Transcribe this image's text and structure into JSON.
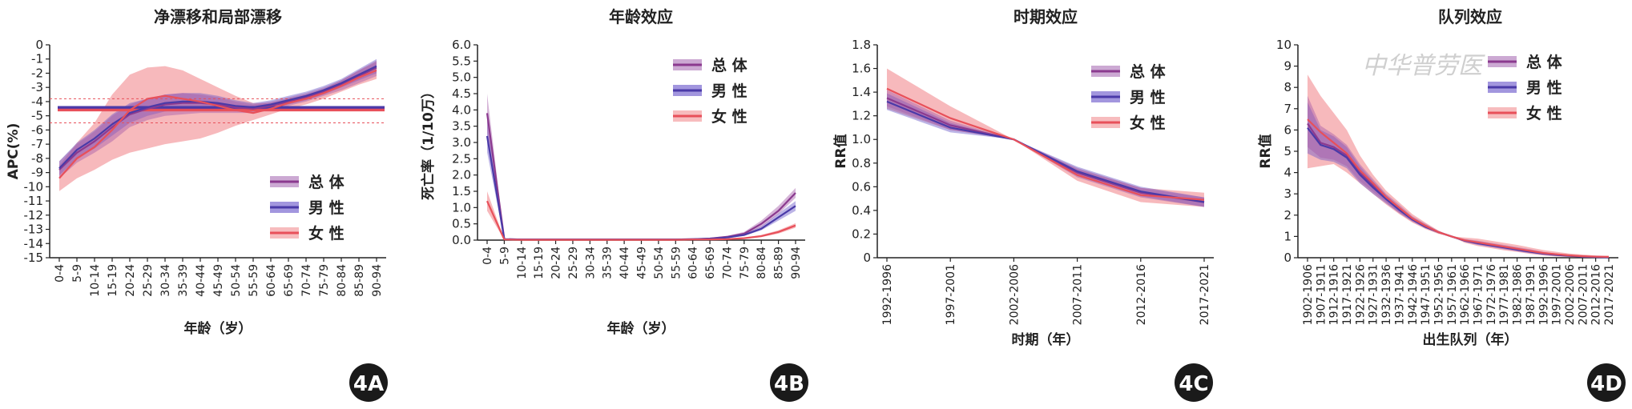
{
  "watermark": "中华普劳医",
  "panels": [
    {
      "id": "4A",
      "title": "净漂移和局部漂移",
      "badge": "4A",
      "chart_data": {
        "type": "line",
        "xlabel": "年龄（岁）",
        "ylabel": "APC(%)",
        "ylim": [
          -15,
          0
        ],
        "yticks": [
          "0",
          "-1",
          "-2",
          "-3",
          "-4",
          "-5",
          "-6",
          "-7",
          "-8",
          "-9",
          "-10",
          "-11",
          "-12",
          "-13",
          "-14",
          "-15"
        ],
        "categories": [
          "0-4",
          "5-9",
          "10-14",
          "15-19",
          "20-24",
          "25-29",
          "30-34",
          "35-39",
          "40-44",
          "45-49",
          "50-54",
          "55-59",
          "60-64",
          "65-69",
          "70-74",
          "75-79",
          "80-84",
          "85-89",
          "90-94"
        ],
        "net_drift": {
          "总体": -4.5,
          "男性": -4.4,
          "女性": -4.6
        },
        "net_drift_ci_female": [
          -5.5,
          -3.8
        ],
        "series": [
          {
            "name": "总体",
            "color": "#8b3a8f",
            "values": [
              -8.8,
              -7.6,
              -6.8,
              -5.8,
              -4.9,
              -4.5,
              -4.2,
              -4.1,
              -4.1,
              -4.2,
              -4.4,
              -4.5,
              -4.3,
              -4.0,
              -3.7,
              -3.3,
              -2.8,
              -2.2,
              -1.6
            ],
            "lower": [
              -9.4,
              -8.3,
              -7.6,
              -6.8,
              -5.8,
              -5.3,
              -5.0,
              -4.9,
              -4.8,
              -4.8,
              -4.8,
              -4.8,
              -4.6,
              -4.3,
              -4.0,
              -3.6,
              -3.2,
              -2.7,
              -2.2
            ],
            "upper": [
              -8.2,
              -7.0,
              -6.1,
              -5.0,
              -4.2,
              -3.8,
              -3.5,
              -3.4,
              -3.5,
              -3.7,
              -4.0,
              -4.2,
              -4.0,
              -3.7,
              -3.4,
              -3.0,
              -2.5,
              -1.8,
              -1.1
            ]
          },
          {
            "name": "男性",
            "color": "#4a3aa8",
            "values": [
              -8.7,
              -7.4,
              -6.6,
              -5.6,
              -4.8,
              -4.4,
              -4.1,
              -4.0,
              -4.0,
              -4.1,
              -4.3,
              -4.4,
              -4.2,
              -3.9,
              -3.6,
              -3.2,
              -2.7,
              -2.1,
              -1.5
            ],
            "lower": [
              -9.2,
              -8.0,
              -7.3,
              -6.4,
              -5.5,
              -5.0,
              -4.7,
              -4.6,
              -4.6,
              -4.6,
              -4.7,
              -4.7,
              -4.5,
              -4.2,
              -3.9,
              -3.5,
              -3.0,
              -2.5,
              -2.0
            ],
            "upper": [
              -8.2,
              -6.9,
              -6.0,
              -4.9,
              -4.1,
              -3.8,
              -3.5,
              -3.4,
              -3.4,
              -3.6,
              -3.9,
              -4.1,
              -3.9,
              -3.6,
              -3.3,
              -2.9,
              -2.4,
              -1.7,
              -1.0
            ]
          },
          {
            "name": "女性",
            "color": "#e8505a",
            "values": [
              -9.4,
              -8.0,
              -7.2,
              -6.0,
              -4.6,
              -3.8,
              -3.6,
              -3.8,
              -4.0,
              -4.3,
              -4.6,
              -4.8,
              -4.5,
              -4.1,
              -3.8,
              -3.4,
              -2.9,
              -2.3,
              -1.8
            ],
            "lower": [
              -10.3,
              -9.4,
              -8.8,
              -8.1,
              -7.6,
              -7.3,
              -7.0,
              -6.8,
              -6.6,
              -6.2,
              -5.7,
              -5.3,
              -4.9,
              -4.5,
              -4.2,
              -3.8,
              -3.3,
              -2.8,
              -2.4
            ],
            "upper": [
              -8.5,
              -6.9,
              -5.5,
              -3.5,
              -2.1,
              -1.6,
              -1.5,
              -1.8,
              -2.4,
              -3.0,
              -3.6,
              -4.1,
              -4.1,
              -3.8,
              -3.5,
              -3.1,
              -2.5,
              -1.8,
              -1.2
            ]
          }
        ]
      }
    },
    {
      "id": "4B",
      "title": "年龄效应",
      "badge": "4B",
      "chart_data": {
        "type": "line",
        "xlabel": "年龄（岁）",
        "ylabel": "死亡率（1/10万）",
        "ylim": [
          0,
          6
        ],
        "yticks": [
          "0.0",
          "0.5",
          "1.0",
          "1.5",
          "2.0",
          "2.5",
          "3.0",
          "3.5",
          "4.0",
          "4.5",
          "5.0",
          "5.5",
          "6.0"
        ],
        "categories": [
          "0-4",
          "5-9",
          "10-14",
          "15-19",
          "20-24",
          "25-29",
          "30-34",
          "35-39",
          "40-44",
          "45-49",
          "50-54",
          "55-59",
          "60-64",
          "65-69",
          "70-74",
          "75-79",
          "80-84",
          "85-89",
          "90-94"
        ],
        "series": [
          {
            "name": "总体",
            "color": "#8b3a8f",
            "values": [
              3.9,
              0.03,
              0.02,
              0.02,
              0.02,
              0.02,
              0.02,
              0.02,
              0.02,
              0.02,
              0.02,
              0.02,
              0.03,
              0.05,
              0.1,
              0.2,
              0.5,
              0.9,
              1.45
            ],
            "lower": [
              3.3,
              0.02,
              0.01,
              0.01,
              0.01,
              0.01,
              0.01,
              0.01,
              0.01,
              0.01,
              0.01,
              0.01,
              0.02,
              0.04,
              0.08,
              0.16,
              0.4,
              0.8,
              1.3
            ],
            "upper": [
              4.5,
              0.05,
              0.03,
              0.03,
              0.03,
              0.03,
              0.03,
              0.03,
              0.03,
              0.03,
              0.03,
              0.03,
              0.04,
              0.07,
              0.13,
              0.25,
              0.6,
              1.05,
              1.6
            ]
          },
          {
            "name": "男性",
            "color": "#4a3aa8",
            "values": [
              3.2,
              0.03,
              0.02,
              0.02,
              0.02,
              0.02,
              0.02,
              0.02,
              0.02,
              0.02,
              0.02,
              0.02,
              0.03,
              0.04,
              0.08,
              0.16,
              0.35,
              0.7,
              1.05
            ],
            "lower": [
              2.7,
              0.02,
              0.01,
              0.01,
              0.01,
              0.01,
              0.01,
              0.01,
              0.01,
              0.01,
              0.01,
              0.01,
              0.02,
              0.03,
              0.06,
              0.13,
              0.3,
              0.6,
              0.9
            ],
            "upper": [
              3.7,
              0.04,
              0.03,
              0.03,
              0.03,
              0.03,
              0.03,
              0.03,
              0.03,
              0.03,
              0.03,
              0.03,
              0.04,
              0.05,
              0.1,
              0.2,
              0.42,
              0.82,
              1.2
            ]
          },
          {
            "name": "女性",
            "color": "#e8505a",
            "values": [
              1.2,
              0.02,
              0.01,
              0.01,
              0.01,
              0.01,
              0.01,
              0.01,
              0.01,
              0.01,
              0.01,
              0.01,
              0.02,
              0.02,
              0.03,
              0.06,
              0.12,
              0.25,
              0.45
            ],
            "lower": [
              0.9,
              0.01,
              0.005,
              0.005,
              0.005,
              0.005,
              0.005,
              0.005,
              0.005,
              0.005,
              0.005,
              0.005,
              0.01,
              0.01,
              0.02,
              0.04,
              0.09,
              0.2,
              0.38
            ],
            "upper": [
              1.5,
              0.03,
              0.02,
              0.02,
              0.02,
              0.02,
              0.02,
              0.02,
              0.02,
              0.02,
              0.02,
              0.02,
              0.03,
              0.03,
              0.04,
              0.08,
              0.16,
              0.3,
              0.52
            ]
          }
        ]
      }
    },
    {
      "id": "4C",
      "title": "时期效应",
      "badge": "4C",
      "chart_data": {
        "type": "line",
        "xlabel": "时期（年）",
        "ylabel": "RR值",
        "ylim": [
          0,
          1.8
        ],
        "yticks": [
          "0",
          "0.2",
          "0.4",
          "0.6",
          "0.8",
          "1.0",
          "1.2",
          "1.4",
          "1.6",
          "1.8"
        ],
        "categories": [
          "1992-1996",
          "1997-2001",
          "2002-2006",
          "2007-2011",
          "2012-2016",
          "2017-2021"
        ],
        "series": [
          {
            "name": "总体",
            "color": "#8b3a8f",
            "values": [
              1.35,
              1.12,
              1.0,
              0.72,
              0.55,
              0.47
            ],
            "lower": [
              1.28,
              1.08,
              1.0,
              0.68,
              0.51,
              0.43
            ],
            "upper": [
              1.42,
              1.16,
              1.0,
              0.76,
              0.59,
              0.51
            ]
          },
          {
            "name": "男性",
            "color": "#4a3aa8",
            "values": [
              1.32,
              1.1,
              1.0,
              0.73,
              0.56,
              0.47
            ],
            "lower": [
              1.25,
              1.06,
              1.0,
              0.69,
              0.52,
              0.43
            ],
            "upper": [
              1.39,
              1.14,
              1.0,
              0.77,
              0.6,
              0.51
            ]
          },
          {
            "name": "女性",
            "color": "#e8505a",
            "values": [
              1.43,
              1.18,
              1.0,
              0.7,
              0.53,
              0.49
            ],
            "lower": [
              1.26,
              1.08,
              1.0,
              0.65,
              0.47,
              0.43
            ],
            "upper": [
              1.6,
              1.28,
              1.0,
              0.75,
              0.59,
              0.55
            ]
          }
        ]
      }
    },
    {
      "id": "4D",
      "title": "队列效应",
      "badge": "4D",
      "chart_data": {
        "type": "line",
        "xlabel": "出生队列（年）",
        "ylabel": "RR值",
        "ylim": [
          0,
          10
        ],
        "yticks": [
          "0",
          "1",
          "2",
          "3",
          "4",
          "5",
          "6",
          "7",
          "8",
          "9",
          "10"
        ],
        "categories": [
          "1902-1906",
          "1907-1911",
          "1912-1916",
          "1917-1921",
          "1922-1926",
          "1927-1931",
          "1932-1936",
          "1937-1941",
          "1942-1946",
          "1947-1951",
          "1952-1956",
          "1957-1961",
          "1962-1966",
          "1967-1971",
          "1972-1976",
          "1977-1981",
          "1982-1986",
          "1987-1991",
          "1992-1996",
          "1997-2001",
          "2002-2006",
          "2007-2011",
          "2012-2016",
          "2017-2021"
        ],
        "series": [
          {
            "name": "总体",
            "color": "#8b3a8f",
            "values": [
              6.3,
              5.4,
              5.2,
              4.8,
              4.0,
              3.4,
              2.8,
              2.3,
              1.8,
              1.5,
              1.2,
              1.0,
              0.8,
              0.7,
              0.6,
              0.5,
              0.4,
              0.3,
              0.2,
              0.15,
              0.1,
              0.06,
              0.04,
              0.03
            ],
            "lower": [
              5.2,
              4.7,
              4.6,
              4.3,
              3.6,
              3.1,
              2.6,
              2.1,
              1.7,
              1.4,
              1.15,
              1.0,
              0.75,
              0.62,
              0.52,
              0.42,
              0.32,
              0.23,
              0.15,
              0.1,
              0.06,
              0.03,
              0.02,
              0.01
            ],
            "upper": [
              7.6,
              6.2,
              5.8,
              5.3,
              4.4,
              3.7,
              3.0,
              2.5,
              1.95,
              1.6,
              1.25,
              1.0,
              0.88,
              0.8,
              0.7,
              0.6,
              0.5,
              0.4,
              0.28,
              0.2,
              0.14,
              0.1,
              0.07,
              0.05
            ]
          },
          {
            "name": "男性",
            "color": "#4a3aa8",
            "values": [
              6.1,
              5.3,
              5.1,
              4.7,
              3.9,
              3.3,
              2.75,
              2.25,
              1.8,
              1.45,
              1.2,
              1.0,
              0.8,
              0.68,
              0.58,
              0.48,
              0.38,
              0.28,
              0.19,
              0.13,
              0.09,
              0.05,
              0.03,
              0.02
            ],
            "lower": [
              4.9,
              4.6,
              4.5,
              4.2,
              3.5,
              3.0,
              2.55,
              2.1,
              1.7,
              1.38,
              1.15,
              1.0,
              0.74,
              0.6,
              0.5,
              0.4,
              0.3,
              0.21,
              0.13,
              0.08,
              0.05,
              0.02,
              0.01,
              0.0
            ],
            "upper": [
              7.3,
              6.0,
              5.7,
              5.2,
              4.3,
              3.6,
              2.95,
              2.4,
              1.9,
              1.52,
              1.25,
              1.0,
              0.86,
              0.76,
              0.66,
              0.56,
              0.46,
              0.35,
              0.25,
              0.18,
              0.13,
              0.08,
              0.05,
              0.04
            ]
          },
          {
            "name": "女性",
            "color": "#e8505a",
            "values": [
              6.5,
              5.9,
              5.4,
              4.9,
              4.1,
              3.5,
              2.85,
              2.35,
              1.85,
              1.5,
              1.2,
              1.0,
              0.82,
              0.72,
              0.62,
              0.52,
              0.42,
              0.32,
              0.22,
              0.16,
              0.11,
              0.07,
              0.05,
              0.04
            ],
            "lower": [
              4.2,
              4.3,
              4.4,
              4.0,
              3.5,
              3.0,
              2.5,
              2.05,
              1.65,
              1.35,
              1.12,
              1.0,
              0.7,
              0.55,
              0.45,
              0.35,
              0.27,
              0.18,
              0.11,
              0.06,
              0.03,
              0.01,
              0.0,
              0.0
            ],
            "upper": [
              8.6,
              7.6,
              6.8,
              6.0,
              4.8,
              3.9,
              3.15,
              2.6,
              2.05,
              1.65,
              1.28,
              1.0,
              0.95,
              0.9,
              0.8,
              0.7,
              0.6,
              0.48,
              0.36,
              0.28,
              0.2,
              0.15,
              0.11,
              0.09
            ]
          }
        ]
      }
    }
  ],
  "legend": [
    "总体",
    "男性",
    "女性"
  ]
}
